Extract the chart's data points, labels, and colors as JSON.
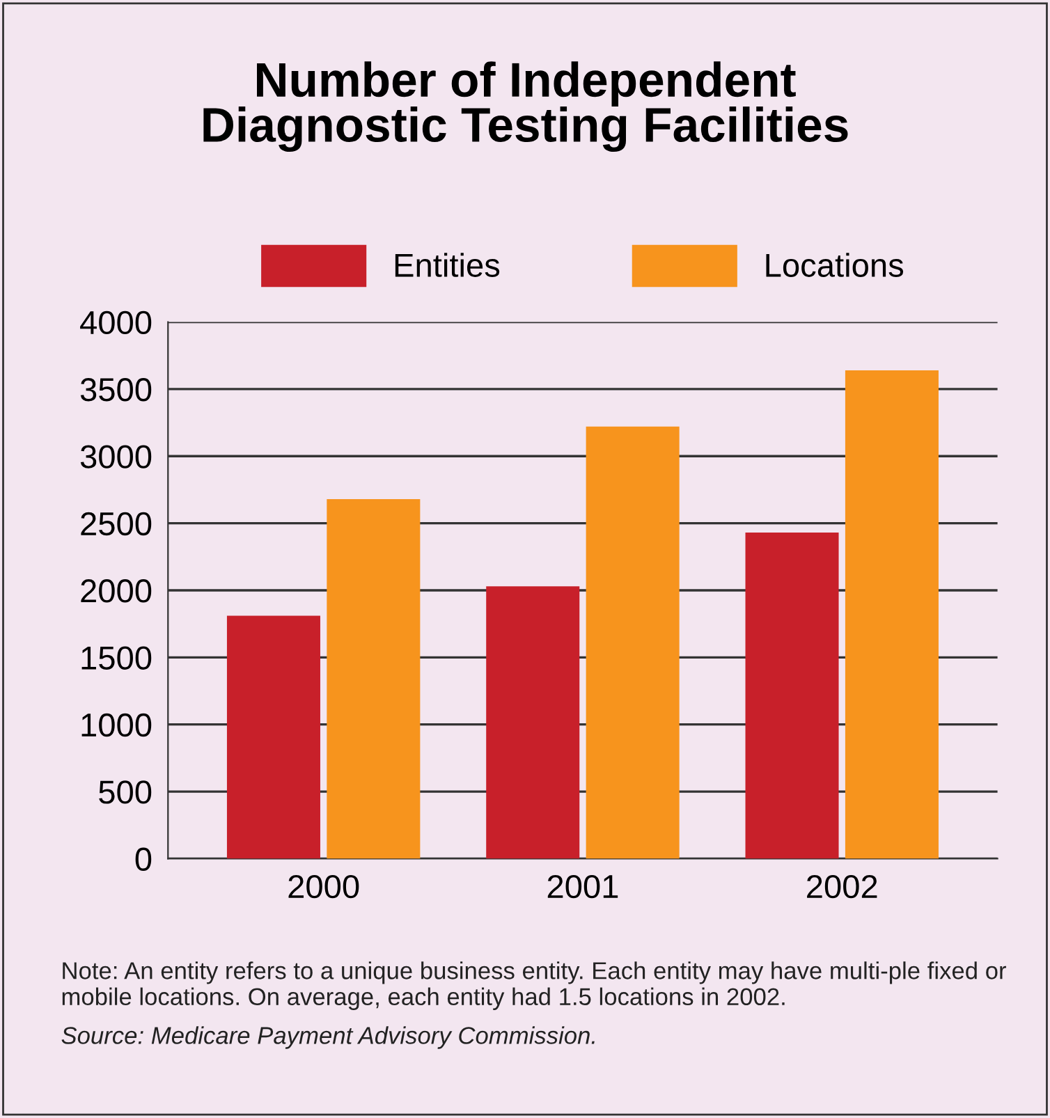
{
  "chart_data": {
    "type": "bar",
    "title": "Number of Independent\nDiagnostic Testing Facilities",
    "categories": [
      "2000",
      "2001",
      "2002"
    ],
    "series": [
      {
        "name": "Entities",
        "color": "#c8202a",
        "values": [
          1810,
          2030,
          2430
        ]
      },
      {
        "name": "Locations",
        "color": "#f7941d",
        "values": [
          2680,
          3220,
          3640
        ]
      }
    ],
    "ylim": [
      0,
      4000
    ],
    "yticks": [
      0,
      500,
      1000,
      1500,
      2000,
      2500,
      3000,
      3500,
      4000
    ],
    "grid": "y",
    "legend": "top",
    "annotations": [
      "Note: An entity refers to a unique business entity. Each entity may have multi-ple fixed or mobile locations. On average, each entity had 1.5 locations in 2002.",
      "Source: Medicare Payment Advisory Commission."
    ]
  }
}
